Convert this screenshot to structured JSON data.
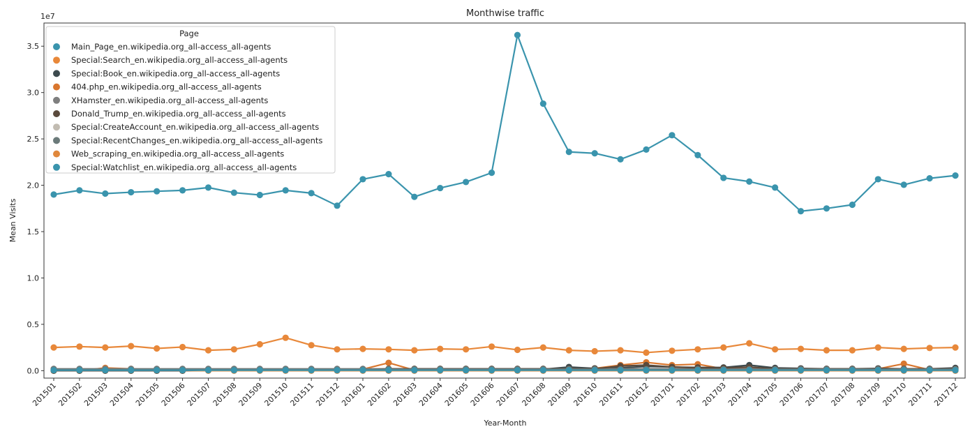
{
  "chart_data": {
    "type": "line",
    "title": "Monthwise traffic",
    "xlabel": "Year-Month",
    "ylabel": "Mean Visits",
    "offset_label": "1e7",
    "y_scale_factor": 10000000,
    "ylim": [
      -0.08,
      3.75
    ],
    "yticks": [
      0.0,
      0.5,
      1.0,
      1.5,
      2.0,
      2.5,
      3.0,
      3.5
    ],
    "ytick_labels": [
      "0.0",
      "0.5",
      "1.0",
      "1.5",
      "2.0",
      "2.5",
      "3.0",
      "3.5"
    ],
    "grid": false,
    "legend_title": "Page",
    "legend_position": "upper-left",
    "categories": [
      "201501",
      "201502",
      "201503",
      "201504",
      "201505",
      "201506",
      "201507",
      "201508",
      "201509",
      "201510",
      "201511",
      "201512",
      "201601",
      "201602",
      "201603",
      "201604",
      "201605",
      "201606",
      "201607",
      "201608",
      "201609",
      "201610",
      "201611",
      "201612",
      "201701",
      "201702",
      "201703",
      "201704",
      "201705",
      "201706",
      "201707",
      "201708",
      "201709",
      "201710",
      "201711",
      "201712"
    ],
    "series": [
      {
        "name": "Main_Page_en.wikipedia.org_all-access_all-agents",
        "color": "#3a94ad",
        "values": [
          1.9,
          1.945,
          1.91,
          1.925,
          1.935,
          1.945,
          1.975,
          1.92,
          1.895,
          1.945,
          1.915,
          1.78,
          2.065,
          2.12,
          1.875,
          1.97,
          2.035,
          2.135,
          3.62,
          2.88,
          2.36,
          2.345,
          2.28,
          2.385,
          2.54,
          2.325,
          2.08,
          2.04,
          1.975,
          1.72,
          1.75,
          1.79,
          2.065,
          2.005,
          2.075,
          2.105
        ]
      },
      {
        "name": "Special:Search_en.wikipedia.org_all-access_all-agents",
        "color": "#e8883a",
        "values": [
          0.25,
          0.26,
          0.25,
          0.265,
          0.24,
          0.255,
          0.22,
          0.23,
          0.285,
          0.355,
          0.275,
          0.23,
          0.235,
          0.23,
          0.22,
          0.235,
          0.23,
          0.26,
          0.225,
          0.25,
          0.22,
          0.21,
          0.22,
          0.195,
          0.215,
          0.23,
          0.25,
          0.295,
          0.23,
          0.235,
          0.22,
          0.22,
          0.25,
          0.235,
          0.245,
          0.25
        ]
      },
      {
        "name": "Special:Book_en.wikipedia.org_all-access_all-agents",
        "color": "#3c4a4e",
        "values": [
          0.01,
          0.01,
          0.01,
          0.01,
          0.01,
          0.01,
          0.01,
          0.015,
          0.015,
          0.015,
          0.015,
          0.01,
          0.015,
          0.015,
          0.015,
          0.015,
          0.015,
          0.015,
          0.015,
          0.015,
          0.04,
          0.025,
          0.03,
          0.045,
          0.04,
          0.035,
          0.035,
          0.06,
          0.03,
          0.025,
          0.02,
          0.02,
          0.025,
          0.02,
          0.02,
          0.03
        ]
      },
      {
        "name": "404.php_en.wikipedia.org_all-access_all-agents",
        "color": "#d9772f",
        "values": [
          0.0,
          0.0,
          0.03,
          0.02,
          0.01,
          0.005,
          0.005,
          0.005,
          0.005,
          0.005,
          0.005,
          0.005,
          0.015,
          0.085,
          0.005,
          0.005,
          0.005,
          0.005,
          0.005,
          0.005,
          0.02,
          0.025,
          0.06,
          0.09,
          0.06,
          0.07,
          0.02,
          0.03,
          0.02,
          0.01,
          0.01,
          0.01,
          0.02,
          0.075,
          0.01,
          0.005
        ]
      },
      {
        "name": "XHamster_en.wikipedia.org_all-access_all-agents",
        "color": "#7f7f7f",
        "values": [
          0.02,
          0.02,
          0.02,
          0.02,
          0.02,
          0.02,
          0.02,
          0.02,
          0.02,
          0.02,
          0.02,
          0.02,
          0.02,
          0.02,
          0.02,
          0.02,
          0.02,
          0.02,
          0.02,
          0.02,
          0.02,
          0.02,
          0.02,
          0.02,
          0.02,
          0.02,
          0.02,
          0.02,
          0.02,
          0.02,
          0.02,
          0.02,
          0.02,
          0.02,
          0.02,
          0.02
        ]
      },
      {
        "name": "Donald_Trump_en.wikipedia.org_all-access_all-agents",
        "color": "#5a4a3c",
        "values": [
          0.0,
          0.0,
          0.0,
          0.0,
          0.0,
          0.0,
          0.01,
          0.01,
          0.01,
          0.01,
          0.01,
          0.01,
          0.01,
          0.02,
          0.02,
          0.02,
          0.02,
          0.02,
          0.02,
          0.02,
          0.02,
          0.02,
          0.05,
          0.06,
          0.04,
          0.03,
          0.03,
          0.04,
          0.02,
          0.02,
          0.02,
          0.02,
          0.02,
          0.02,
          0.02,
          0.02
        ]
      },
      {
        "name": "Special:CreateAccount_en.wikipedia.org_all-access_all-agents",
        "color": "#c2bcb2",
        "values": [
          0.01,
          0.01,
          0.01,
          0.01,
          0.01,
          0.01,
          0.01,
          0.01,
          0.01,
          0.01,
          0.01,
          0.01,
          0.01,
          0.01,
          0.01,
          0.01,
          0.01,
          0.01,
          0.01,
          0.01,
          0.01,
          0.01,
          0.01,
          0.01,
          0.01,
          0.01,
          0.01,
          0.01,
          0.01,
          0.01,
          0.01,
          0.01,
          0.01,
          0.01,
          0.01,
          0.01
        ]
      },
      {
        "name": "Special:RecentChanges_en.wikipedia.org_all-access_all-agents",
        "color": "#6b7a7a",
        "values": [
          0.015,
          0.015,
          0.015,
          0.015,
          0.015,
          0.015,
          0.015,
          0.015,
          0.015,
          0.015,
          0.015,
          0.015,
          0.015,
          0.015,
          0.015,
          0.015,
          0.015,
          0.015,
          0.015,
          0.015,
          0.015,
          0.015,
          0.015,
          0.015,
          0.015,
          0.015,
          0.015,
          0.015,
          0.015,
          0.015,
          0.015,
          0.015,
          0.015,
          0.015,
          0.015,
          0.015
        ]
      },
      {
        "name": "Web_scraping_en.wikipedia.org_all-access_all-agents",
        "color": "#e0883c",
        "values": [
          0.0,
          0.0,
          0.0,
          0.0,
          0.0,
          0.0,
          0.0,
          0.0,
          0.0,
          0.0,
          0.0,
          0.0,
          0.0,
          0.0,
          0.0,
          0.0,
          0.0,
          0.0,
          0.0,
          0.0,
          0.0,
          0.0,
          0.0,
          0.0,
          0.0,
          0.0,
          0.0,
          0.0,
          0.0,
          0.0,
          0.0,
          0.0,
          0.0,
          0.0,
          0.0,
          0.0
        ]
      },
      {
        "name": "Special:Watchlist_en.wikipedia.org_all-access_all-agents",
        "color": "#3a94ad",
        "values": [
          0.005,
          0.005,
          0.005,
          0.005,
          0.005,
          0.005,
          0.005,
          0.005,
          0.005,
          0.005,
          0.005,
          0.005,
          0.005,
          0.005,
          0.005,
          0.005,
          0.005,
          0.005,
          0.005,
          0.005,
          0.005,
          0.005,
          0.005,
          0.005,
          0.005,
          0.005,
          0.005,
          0.005,
          0.005,
          0.005,
          0.005,
          0.005,
          0.005,
          0.005,
          0.005,
          0.005
        ]
      }
    ]
  }
}
